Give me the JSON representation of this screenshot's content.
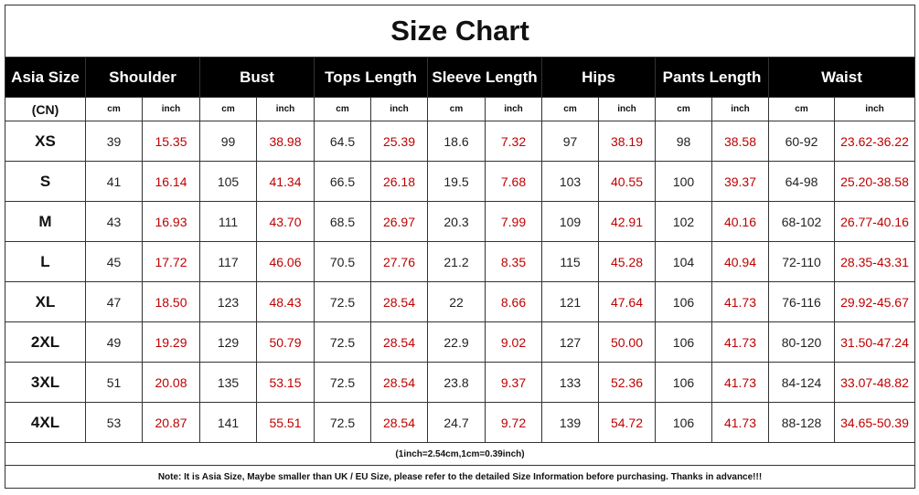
{
  "title": "Size Chart",
  "table": {
    "headers": [
      "Asia Size",
      "Shoulder",
      "Bust",
      "Tops Length",
      "Sleeve Length",
      "Hips",
      "Pants Length",
      "Waist"
    ],
    "units": [
      "(CN)",
      "cm",
      "inch",
      "cm",
      "inch",
      "cm",
      "inch",
      "cm",
      "inch",
      "cm",
      "inch",
      "cm",
      "inch",
      "cm",
      "inch"
    ],
    "rows": [
      [
        "XS",
        "39",
        "15.35",
        "99",
        "38.98",
        "64.5",
        "25.39",
        "18.6",
        "7.32",
        "97",
        "38.19",
        "98",
        "38.58",
        "60-92",
        "23.62-36.22"
      ],
      [
        "S",
        "41",
        "16.14",
        "105",
        "41.34",
        "66.5",
        "26.18",
        "19.5",
        "7.68",
        "103",
        "40.55",
        "100",
        "39.37",
        "64-98",
        "25.20-38.58"
      ],
      [
        "M",
        "43",
        "16.93",
        "111",
        "43.70",
        "68.5",
        "26.97",
        "20.3",
        "7.99",
        "109",
        "42.91",
        "102",
        "40.16",
        "68-102",
        "26.77-40.16"
      ],
      [
        "L",
        "45",
        "17.72",
        "117",
        "46.06",
        "70.5",
        "27.76",
        "21.2",
        "8.35",
        "115",
        "45.28",
        "104",
        "40.94",
        "72-110",
        "28.35-43.31"
      ],
      [
        "XL",
        "47",
        "18.50",
        "123",
        "48.43",
        "72.5",
        "28.54",
        "22",
        "8.66",
        "121",
        "47.64",
        "106",
        "41.73",
        "76-116",
        "29.92-45.67"
      ],
      [
        "2XL",
        "49",
        "19.29",
        "129",
        "50.79",
        "72.5",
        "28.54",
        "22.9",
        "9.02",
        "127",
        "50.00",
        "106",
        "41.73",
        "80-120",
        "31.50-47.24"
      ],
      [
        "3XL",
        "51",
        "20.08",
        "135",
        "53.15",
        "72.5",
        "28.54",
        "23.8",
        "9.37",
        "133",
        "52.36",
        "106",
        "41.73",
        "84-124",
        "33.07-48.82"
      ],
      [
        "4XL",
        "53",
        "20.87",
        "141",
        "55.51",
        "72.5",
        "28.54",
        "24.7",
        "9.72",
        "139",
        "54.72",
        "106",
        "41.73",
        "88-128",
        "34.65-50.39"
      ]
    ]
  },
  "notes": [
    "(1inch=2.54cm,1cm=0.39inch)",
    "Note: It is Asia Size, Maybe smaller than UK / EU Size, please refer to the detailed Size Information before purchasing. Thanks in advance!!!"
  ]
}
